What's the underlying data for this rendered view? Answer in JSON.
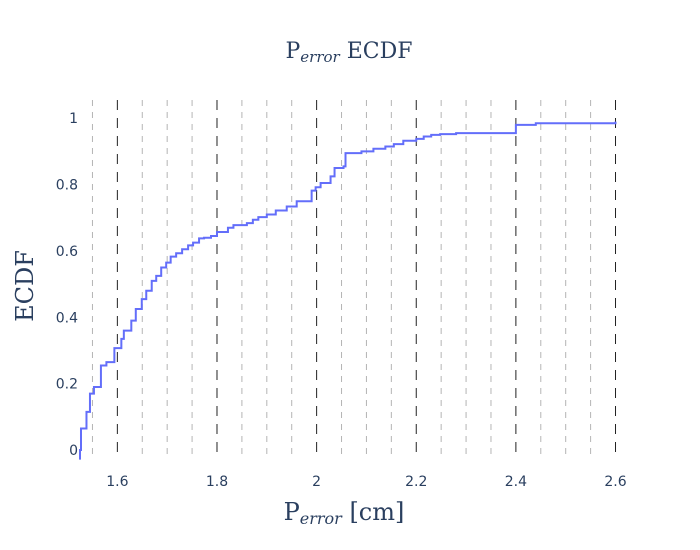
{
  "chart_data": {
    "type": "line",
    "title": "P",
    "title_subscript": "error",
    "title_suffix": " ECDF",
    "xlabel": "P",
    "xlabel_subscript": "error",
    "xlabel_suffix": " [cm]",
    "ylabel": "ECDF",
    "xlim": [
      1.525,
      2.605
    ],
    "ylim": [
      -0.03,
      1.055
    ],
    "xticks": [
      1.6,
      1.8,
      2.0,
      2.2,
      2.4,
      2.6
    ],
    "xtick_labels": [
      "1.6",
      "1.8",
      "2",
      "2.2",
      "2.4",
      "2.6"
    ],
    "yticks": [
      0,
      0.2,
      0.4,
      0.6,
      0.8,
      1.0
    ],
    "ytick_labels": [
      "0",
      "0.2",
      "0.4",
      "0.6",
      "0.8",
      "1"
    ],
    "major_vlines": [
      1.6,
      1.8,
      2.0,
      2.2,
      2.4,
      2.6
    ],
    "minor_vlines": [
      1.55,
      1.65,
      1.7,
      1.75,
      1.85,
      1.9,
      1.95,
      2.05,
      2.1,
      2.15,
      2.25,
      2.3,
      2.35,
      2.45,
      2.5,
      2.55
    ],
    "line_color": "#636efa",
    "shape": "step",
    "series": [
      {
        "x": [
          1.525,
          1.527,
          1.538,
          1.545,
          1.553,
          1.567,
          1.578,
          1.594,
          1.608,
          1.613,
          1.628,
          1.637,
          1.649,
          1.658,
          1.669,
          1.678,
          1.688,
          1.698,
          1.707,
          1.718,
          1.73,
          1.742,
          1.752,
          1.764,
          1.774,
          1.788,
          1.8,
          1.822,
          1.833,
          1.86,
          1.872,
          1.883,
          1.9,
          1.918,
          1.94,
          1.96,
          1.99,
          1.998,
          2.008,
          2.028,
          2.036,
          2.054,
          2.058,
          2.09,
          2.114,
          2.138,
          2.155,
          2.174,
          2.2,
          2.215,
          2.23,
          2.248,
          2.28,
          2.4,
          2.44,
          2.6
        ],
        "y": [
          0.0,
          0.065,
          0.115,
          0.17,
          0.19,
          0.255,
          0.265,
          0.307,
          0.335,
          0.36,
          0.39,
          0.425,
          0.455,
          0.48,
          0.51,
          0.525,
          0.55,
          0.565,
          0.583,
          0.593,
          0.605,
          0.617,
          0.625,
          0.638,
          0.64,
          0.645,
          0.657,
          0.67,
          0.678,
          0.684,
          0.694,
          0.702,
          0.71,
          0.722,
          0.734,
          0.75,
          0.782,
          0.792,
          0.805,
          0.825,
          0.85,
          0.855,
          0.895,
          0.9,
          0.908,
          0.915,
          0.922,
          0.932,
          0.938,
          0.945,
          0.95,
          0.952,
          0.955,
          0.98,
          0.985,
          0.99
        ]
      }
    ]
  }
}
